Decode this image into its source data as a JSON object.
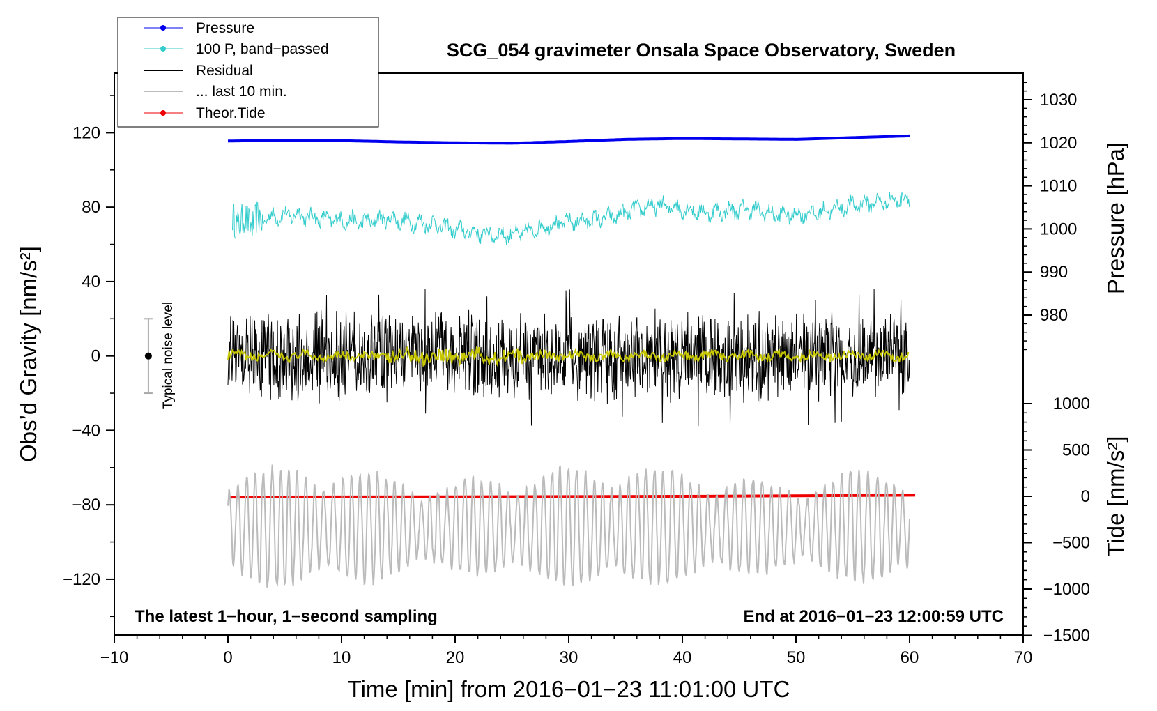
{
  "chart_data": {
    "type": "line",
    "title": "SCG_054 gravimeter Onsala Space Observatory, Sweden",
    "xlabel": "Time [min] from 2016−01−23 11:01:00 UTC",
    "ylabel_left": "Obs’d Gravity [nm/s²]",
    "ylabel_right_pressure": "Pressure [hPa]",
    "ylabel_right_tide": "Tide [nm/s²]",
    "xlim": [
      -10,
      70
    ],
    "ylim": [
      -150,
      152
    ],
    "x_ticks": [
      {
        "v": -10,
        "label": "−10"
      },
      {
        "v": 0,
        "label": "0"
      },
      {
        "v": 10,
        "label": "10"
      },
      {
        "v": 20,
        "label": "20"
      },
      {
        "v": 30,
        "label": "30"
      },
      {
        "v": 40,
        "label": "40"
      },
      {
        "v": 50,
        "label": "50"
      },
      {
        "v": 60,
        "label": "60"
      },
      {
        "v": 70,
        "label": "70"
      }
    ],
    "y_ticks": [
      {
        "v": 120,
        "label": "120"
      },
      {
        "v": 80,
        "label": "80"
      },
      {
        "v": 40,
        "label": "40"
      },
      {
        "v": 0,
        "label": "0"
      },
      {
        "v": -40,
        "label": "−40"
      },
      {
        "v": -80,
        "label": "−80"
      },
      {
        "v": -120,
        "label": "−120"
      }
    ],
    "pressure_axis": {
      "range": [
        970,
        1035
      ],
      "ticks": [
        1030,
        1020,
        1010,
        1000,
        990,
        980
      ]
    },
    "tide_axis": {
      "range": [
        -1500,
        1100
      ],
      "ticks": [
        {
          "v": 1000,
          "label": "1000"
        },
        {
          "v": 500,
          "label": "500"
        },
        {
          "v": 0,
          "label": "0"
        },
        {
          "v": -500,
          "label": "−500"
        },
        {
          "v": -1000,
          "label": "−1000"
        },
        {
          "v": -1500,
          "label": "−1500"
        }
      ]
    },
    "series": [
      {
        "name": "Pressure",
        "color": "#0000ee",
        "units": "hPa",
        "x": [
          0,
          5,
          10,
          15,
          20,
          25,
          30,
          35,
          40,
          45,
          50,
          55,
          60
        ],
        "values": [
          1020.4,
          1020.6,
          1020.5,
          1020.2,
          1020.0,
          1019.9,
          1020.3,
          1020.8,
          1021.0,
          1020.9,
          1020.8,
          1021.2,
          1021.6
        ]
      },
      {
        "name": "100 P, band−passed",
        "color": "#33cccc",
        "units": "nm/s²",
        "x": [
          0,
          2,
          4,
          6,
          8,
          10,
          12,
          14,
          16,
          18,
          20,
          22,
          24,
          26,
          28,
          30,
          32,
          34,
          36,
          38,
          40,
          42,
          44,
          46,
          48,
          50,
          52,
          54,
          56,
          58,
          60
        ],
        "values": [
          73,
          72,
          75,
          76,
          74,
          73,
          72,
          74,
          72,
          71,
          68,
          66,
          65,
          66,
          70,
          72,
          73,
          75,
          79,
          81,
          79,
          77,
          78,
          79,
          76,
          76,
          77,
          80,
          82,
          83,
          85
        ]
      },
      {
        "name": "Residual",
        "color": "#000000",
        "units": "nm/s²",
        "summary": {
          "mean": 0,
          "typical_range": [
            -25,
            25
          ],
          "max": 39,
          "min": -38
        }
      },
      {
        "name": "... last 10 min.",
        "color": "#bbbbbb",
        "units": "nm/s²",
        "summary": {
          "mean": -92,
          "typical_range": [
            -115,
            -75
          ],
          "max": -55,
          "min": -128
        }
      },
      {
        "name": "Theor.Tide",
        "color": "#ee0000",
        "units": "nm/s² (tide axis)",
        "x": [
          0,
          10,
          20,
          30,
          40,
          50,
          60.5
        ],
        "values": [
          -8,
          -7,
          -6,
          -3,
          0,
          5,
          12
        ]
      }
    ],
    "legend": [
      "Pressure",
      "100 P, band−passed",
      "Residual",
      "... last 10 min.",
      "Theor.Tide"
    ],
    "legend_position": "top-left",
    "noise_bar": {
      "x": -7,
      "center": 0,
      "half_width": 20,
      "label": "Typical noise level"
    },
    "annotations": {
      "left": "The latest 1−hour, 1−second sampling",
      "right": "End at 2016−01−23 12:00:59 UTC"
    }
  }
}
